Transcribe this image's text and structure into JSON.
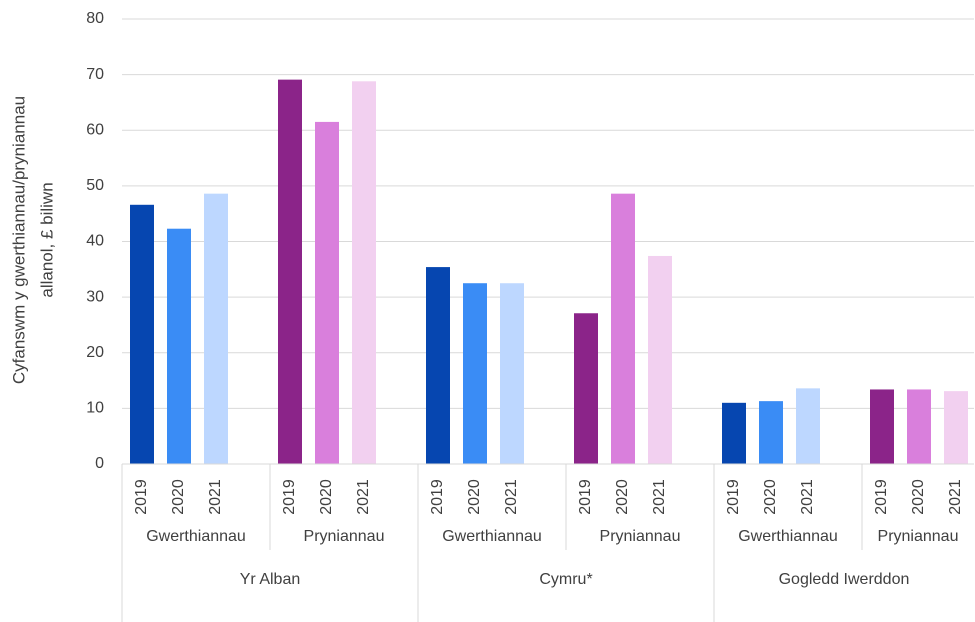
{
  "chart_data": {
    "type": "bar",
    "ylabel": [
      "Cyfanswm y gwerthiannau/pryniannau",
      "allanol, £ biliwn"
    ],
    "ylim": [
      0,
      80
    ],
    "yticks": [
      0,
      10,
      20,
      30,
      40,
      50,
      60,
      70,
      80
    ],
    "grid": true,
    "regions": [
      {
        "name": "Yr Alban",
        "groups": [
          {
            "name": "Gwerthiannau",
            "years": [
              "2019",
              "2020",
              "2021"
            ],
            "colors": [
              "#0646b0",
              "#3a8cf5",
              "#bdd7ff"
            ],
            "values": [
              46.6,
              42.3,
              48.6
            ]
          },
          {
            "name": "Pryniannau",
            "years": [
              "2019",
              "2020",
              "2021"
            ],
            "colors": [
              "#8b2489",
              "#d97fdc",
              "#f2d0f0"
            ],
            "values": [
              69.1,
              61.5,
              68.8
            ]
          }
        ]
      },
      {
        "name": "Cymru*",
        "groups": [
          {
            "name": "Gwerthiannau",
            "years": [
              "2019",
              "2020",
              "2021"
            ],
            "colors": [
              "#0646b0",
              "#3a8cf5",
              "#bdd7ff"
            ],
            "values": [
              35.4,
              32.5,
              32.5
            ]
          },
          {
            "name": "Pryniannau",
            "years": [
              "2019",
              "2020",
              "2021"
            ],
            "colors": [
              "#8b2489",
              "#d97fdc",
              "#f2d0f0"
            ],
            "values": [
              27.1,
              48.6,
              37.4
            ]
          }
        ]
      },
      {
        "name": "Gogledd Iwerddon",
        "groups": [
          {
            "name": "Gwerthiannau",
            "years": [
              "2019",
              "2020",
              "2021"
            ],
            "colors": [
              "#0646b0",
              "#3a8cf5",
              "#bdd7ff"
            ],
            "values": [
              11.0,
              11.3,
              13.6
            ]
          },
          {
            "name": "Pryniannau",
            "years": [
              "2019",
              "2020",
              "2021"
            ],
            "colors": [
              "#8b2489",
              "#d97fdc",
              "#f2d0f0"
            ],
            "values": [
              13.4,
              13.4,
              13.1
            ]
          }
        ]
      }
    ]
  }
}
